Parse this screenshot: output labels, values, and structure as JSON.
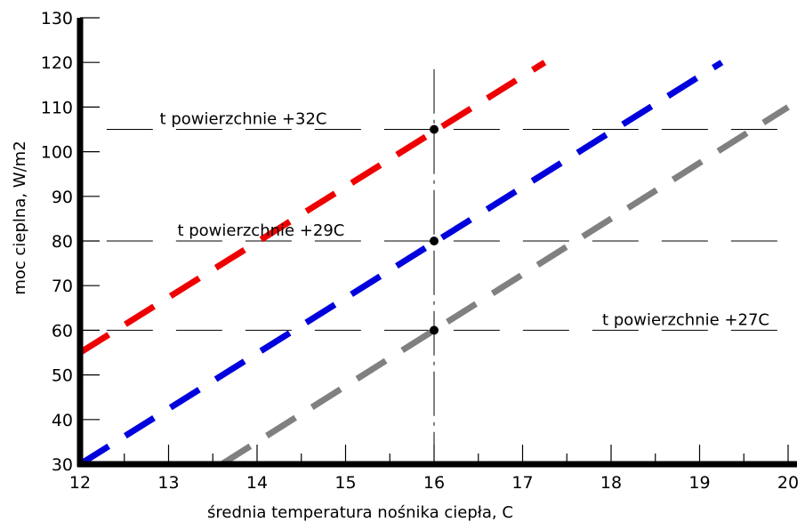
{
  "chart_data": {
    "type": "line",
    "xlabel": "średnia temperatura nośnika ciepła, C",
    "ylabel": "moc cieplna, W/m2",
    "xlim": [
      12,
      20
    ],
    "ylim": [
      30,
      130
    ],
    "x_ticks": [
      "12",
      "13",
      "14",
      "15",
      "16",
      "17",
      "18",
      "19",
      "20"
    ],
    "y_ticks": [
      "30",
      "40",
      "50",
      "60",
      "70",
      "80",
      "90",
      "100",
      "110",
      "120",
      "130"
    ],
    "series": [
      {
        "color": "#ee0000",
        "points": [
          [
            12,
            55
          ],
          [
            17.25,
            120
          ]
        ]
      },
      {
        "color": "#0000dd",
        "points": [
          [
            12,
            30
          ],
          [
            19.25,
            120
          ]
        ]
      },
      {
        "color": "#808080",
        "points": [
          [
            13.6,
            30
          ],
          [
            20,
            110
          ]
        ]
      }
    ],
    "reference_lines": [
      {
        "y": 105,
        "label": "t powierzchnie +32C",
        "label_x": 12.9
      },
      {
        "y": 80,
        "label": "t powierzchnie +29C",
        "label_x": 13.1
      },
      {
        "y": 60,
        "label": "t powierzchnie +27C",
        "label_x": 17.9
      }
    ],
    "vertical_line_x": 16,
    "markers": [
      [
        16,
        105
      ],
      [
        16,
        80
      ],
      [
        16,
        60
      ]
    ],
    "grid": false
  }
}
